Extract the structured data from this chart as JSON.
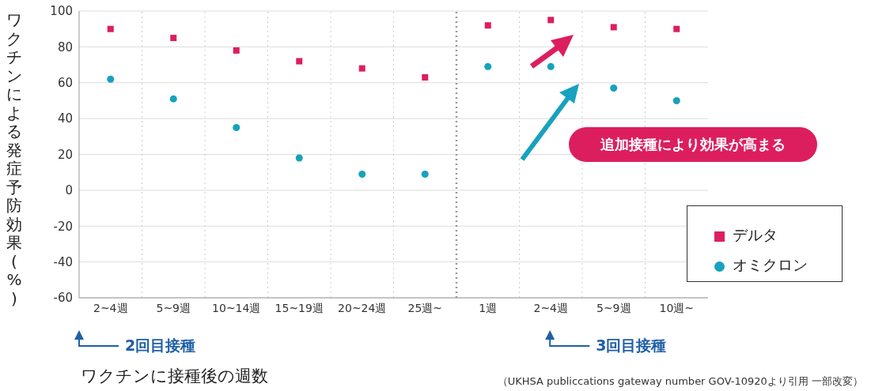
{
  "chart_data": {
    "type": "scatter",
    "xlabel": "ワクチンに接種後の週数",
    "ylabel": "ワクチンによる発症予防効果(%)",
    "categories": [
      "2~4週",
      "5~9週",
      "10~14週",
      "15~19週",
      "20~24週",
      "25週~",
      "1週",
      "2~4週",
      "5~9週",
      "10週~"
    ],
    "series": [
      {
        "name": "デルタ",
        "color": "#dc1e5f",
        "marker": "square",
        "values": [
          90,
          85,
          78,
          72,
          68,
          63,
          92,
          95,
          91,
          90
        ]
      },
      {
        "name": "オミクロン",
        "color": "#17a2bd",
        "marker": "circle",
        "values": [
          62,
          51,
          35,
          18,
          9,
          9,
          69,
          69,
          57,
          50
        ]
      }
    ],
    "ylim": [
      -60,
      100
    ],
    "yticks": [
      -60,
      -40,
      -20,
      0,
      20,
      40,
      60,
      80,
      100
    ],
    "grid": true,
    "legend": "bottom right",
    "ref_lines": [
      {
        "axis": "x",
        "value": "1週",
        "color": "#999999",
        "line_style": "dotted"
      }
    ],
    "annotations": [
      "追加接種により効果が高まる",
      "2回目接種",
      "3回目接種",
      "（UKHSA publiccations gateway number GOV-10920より引用 一部改変）"
    ]
  }
}
